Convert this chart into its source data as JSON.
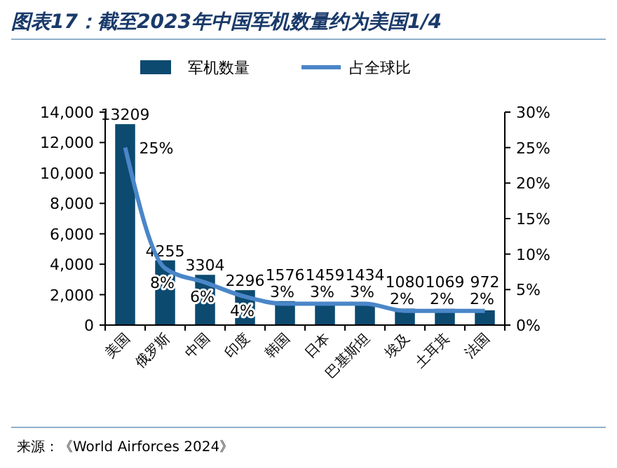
{
  "chart_data": {
    "type": "bar",
    "title": "图表17：截至2023年中国军机数量约为美国1/4",
    "categories": [
      "美国",
      "俄罗斯",
      "中国",
      "印度",
      "韩国",
      "日本",
      "巴基斯坦",
      "埃及",
      "土耳其",
      "法国"
    ],
    "series": [
      {
        "name": "军机数量",
        "color": "#0d4a70",
        "values": [
          13209,
          4255,
          3304,
          2296,
          1576,
          1459,
          1434,
          1080,
          1069,
          972
        ]
      },
      {
        "name": "占全球比",
        "type": "line",
        "axis": "y2",
        "color": "#4a86c8",
        "values": [
          25,
          8,
          6,
          4,
          3,
          3,
          3,
          2,
          2,
          2
        ],
        "value_labels": [
          "25%",
          "8%",
          "6%",
          "4%",
          "3%",
          "3%",
          "3%",
          "2%",
          "2%",
          "2%"
        ]
      }
    ],
    "data_labels": true,
    "ylim": [
      0,
      14000
    ],
    "yticks": [
      0,
      {
        "value": 2000,
        "label": "2,000"
      },
      {
        "value": 4000,
        "label": "4,000"
      },
      {
        "value": 6000,
        "label": "6,000"
      },
      {
        "value": 8000,
        "label": "8,000"
      },
      {
        "value": 10000,
        "label": "10,000"
      },
      {
        "value": 12000,
        "label": "12,000"
      },
      {
        "value": 14000,
        "label": "14,000"
      }
    ],
    "y2lim": [
      0,
      30
    ],
    "y2ticks": [
      {
        "value": 0,
        "label": "0%"
      },
      {
        "value": 5,
        "label": "5%"
      },
      {
        "value": 10,
        "label": "10%"
      },
      {
        "value": 15,
        "label": "15%"
      },
      {
        "value": 20,
        "label": "20%"
      },
      {
        "value": 25,
        "label": "25%"
      },
      {
        "value": 30,
        "label": "30%"
      }
    ],
    "legend": "top",
    "grid": false,
    "annotations": [
      "来源：《World Airforces 2024》"
    ]
  }
}
